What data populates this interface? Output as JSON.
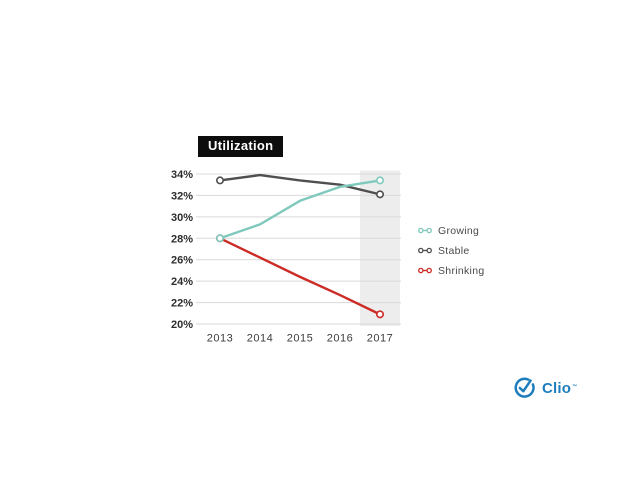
{
  "chart_data": {
    "type": "line",
    "title": "Utilization",
    "categories": [
      "2013",
      "2014",
      "2015",
      "2016",
      "2017"
    ],
    "series": [
      {
        "name": "Growing",
        "color": "#7fc9bc",
        "values": [
          28.0,
          29.3,
          31.5,
          32.8,
          33.4
        ]
      },
      {
        "name": "Stable",
        "color": "#4f4f4f",
        "values": [
          33.4,
          33.9,
          33.4,
          33.0,
          32.1
        ]
      },
      {
        "name": "Shrinking",
        "color": "#cd2b26",
        "values": [
          28.0,
          26.2,
          24.4,
          22.7,
          20.9
        ]
      }
    ],
    "y_ticks": [
      "34%",
      "32%",
      "30%",
      "28%",
      "26%",
      "24%",
      "22%",
      "20%"
    ],
    "ylim": [
      20,
      34
    ],
    "y_tick_step": 2,
    "unit": "%",
    "grid": true,
    "legend_position": "right",
    "highlight_band_category": "2017",
    "marker_style": "endpoints-open-circle",
    "draw_order": [
      1,
      2,
      0
    ]
  },
  "colors": {
    "gridline": "#d9d9d9",
    "highlight_band": "#ededed",
    "y_tick_label": "#2d2d2d",
    "x_tick_label": "#3c3c3c",
    "legend_text": "#4a4a4a",
    "title_bg": "#0d0d0d",
    "title_fg": "#ffffff",
    "brand_blue": "#1e7dbd",
    "background": "#ffffff"
  },
  "branding": {
    "logo_text": "Clio",
    "trademark": "™"
  }
}
